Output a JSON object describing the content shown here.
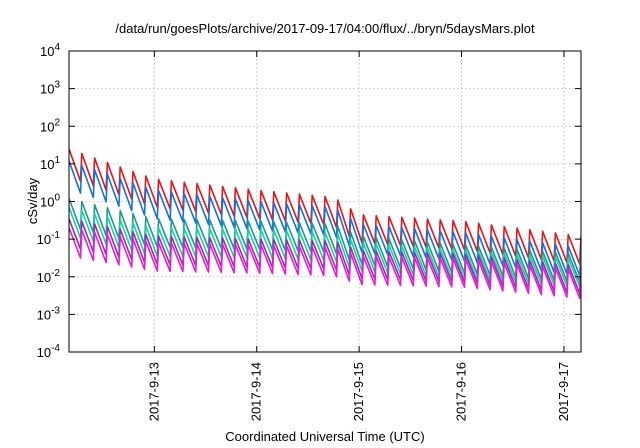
{
  "chart_data": {
    "type": "line",
    "title": "/data/run/goesPlots/archive/2017-09-17/04:00/flux/../bryn/5daysMars.plot",
    "xlabel": "Coordinated Universal Time (UTC)",
    "ylabel": "cSv/day",
    "x_range": [
      "2017-09-12T04:00",
      "2017-09-17T04:00"
    ],
    "x_ticks": [
      {
        "value": "2017-09-13T00:00",
        "label": "2017-9-13"
      },
      {
        "value": "2017-09-14T00:00",
        "label": "2017-9-14"
      },
      {
        "value": "2017-09-15T00:00",
        "label": "2017-9-15"
      },
      {
        "value": "2017-09-16T00:00",
        "label": "2017-9-16"
      },
      {
        "value": "2017-09-17T00:00",
        "label": "2017-9-17"
      }
    ],
    "y_scale": "log",
    "ylim": [
      0.0001,
      10000
    ],
    "y_ticks": [
      {
        "exp": "4"
      },
      {
        "exp": "3"
      },
      {
        "exp": "2"
      },
      {
        "exp": "1"
      },
      {
        "exp": "0"
      },
      {
        "exp": "-1"
      },
      {
        "exp": "-2"
      },
      {
        "exp": "-3"
      },
      {
        "exp": "-4"
      }
    ],
    "y_tick_base": "10",
    "grid": true,
    "sawtooth_period_hours": 3,
    "series": [
      {
        "color": "#e8141c",
        "points": [
          [
            "2017-09-12T04:00",
            25
          ],
          [
            "2017-09-13T00:00",
            4
          ],
          [
            "2017-09-14T00:00",
            2
          ],
          [
            "2017-09-14T18:00",
            1.3
          ],
          [
            "2017-09-15T00:00",
            0.45
          ],
          [
            "2017-09-16T00:00",
            0.3
          ],
          [
            "2017-09-17T04:00",
            0.12
          ]
        ]
      },
      {
        "color": "#1a6fe0",
        "points": [
          [
            "2017-09-12T04:00",
            12
          ],
          [
            "2017-09-13T00:00",
            2
          ],
          [
            "2017-09-14T00:00",
            1
          ],
          [
            "2017-09-14T18:00",
            0.7
          ],
          [
            "2017-09-15T00:00",
            0.25
          ],
          [
            "2017-09-16T00:00",
            0.15
          ],
          [
            "2017-09-17T04:00",
            0.06
          ]
        ]
      },
      {
        "color": "#1a9c8c",
        "points": [
          [
            "2017-09-12T04:00",
            1.2
          ],
          [
            "2017-09-13T00:00",
            0.35
          ],
          [
            "2017-09-14T00:00",
            0.3
          ],
          [
            "2017-09-14T18:00",
            0.25
          ],
          [
            "2017-09-15T00:00",
            0.12
          ],
          [
            "2017-09-16T00:00",
            0.07
          ],
          [
            "2017-09-17T04:00",
            0.04
          ]
        ]
      },
      {
        "color": "#1ecfa8",
        "points": [
          [
            "2017-09-12T04:00",
            0.7
          ],
          [
            "2017-09-13T00:00",
            0.2
          ],
          [
            "2017-09-14T00:00",
            0.18
          ],
          [
            "2017-09-14T18:00",
            0.15
          ],
          [
            "2017-09-15T00:00",
            0.08
          ],
          [
            "2017-09-16T00:00",
            0.05
          ],
          [
            "2017-09-17T04:00",
            0.03
          ]
        ]
      },
      {
        "color": "#9a2bb5",
        "points": [
          [
            "2017-09-12T04:00",
            0.35
          ],
          [
            "2017-09-13T00:00",
            0.12
          ],
          [
            "2017-09-14T00:00",
            0.1
          ],
          [
            "2017-09-14T18:00",
            0.09
          ],
          [
            "2017-09-15T00:00",
            0.05
          ],
          [
            "2017-09-16T00:00",
            0.04
          ],
          [
            "2017-09-17T04:00",
            0.02
          ]
        ]
      },
      {
        "color": "#e81ad2",
        "points": [
          [
            "2017-09-12T04:00",
            0.2
          ],
          [
            "2017-09-13T00:00",
            0.08
          ],
          [
            "2017-09-14T00:00",
            0.07
          ],
          [
            "2017-09-14T18:00",
            0.06
          ],
          [
            "2017-09-15T00:00",
            0.035
          ],
          [
            "2017-09-16T00:00",
            0.03
          ],
          [
            "2017-09-17T04:00",
            0.015
          ]
        ]
      }
    ]
  }
}
